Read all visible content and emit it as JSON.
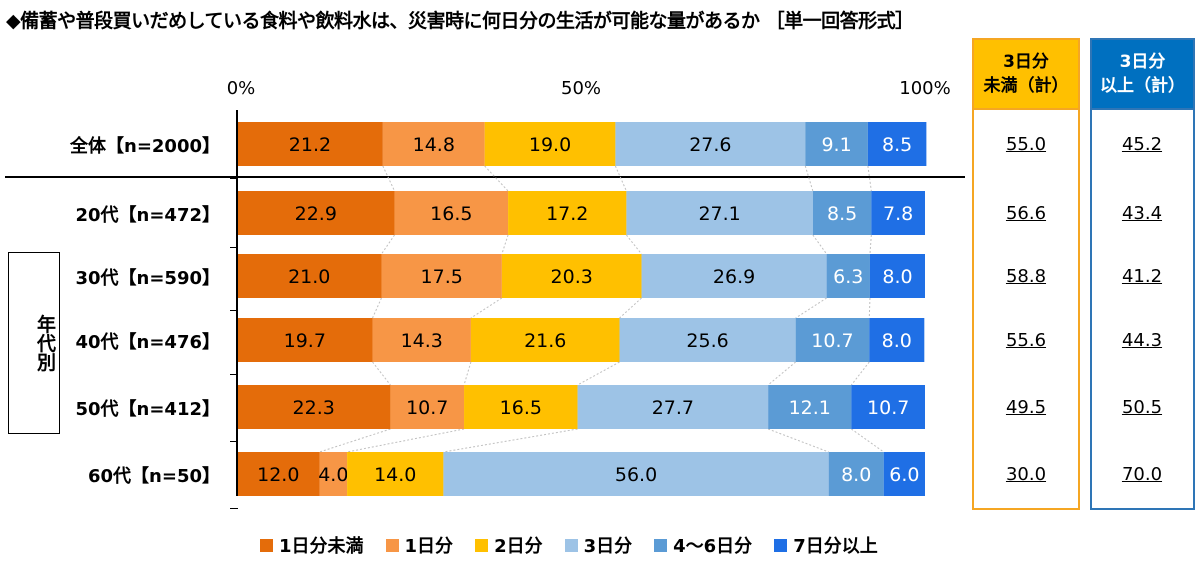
{
  "title": "◆備蓄や普段買いだめしている食料や飲料水は、災害時に何日分の生活が可能な量があるか ［単一回答形式］",
  "chart_data": {
    "type": "bar",
    "orientation": "horizontal",
    "stacked": true,
    "xlim": [
      0,
      100
    ],
    "tick_labels": [
      "0%",
      "50%",
      "100%"
    ],
    "categories": [
      "全体【n=2000】",
      "20代【n=472】",
      "30代【n=590】",
      "40代【n=476】",
      "50代【n=412】",
      "60代【n=50】"
    ],
    "group_label": "年代別",
    "series": [
      {
        "name": "1日分未満",
        "color": "#e46c0a",
        "values": [
          21.2,
          22.9,
          21.0,
          19.7,
          22.3,
          12.0
        ]
      },
      {
        "name": "1日分",
        "color": "#f79646",
        "values": [
          14.8,
          16.5,
          17.5,
          14.3,
          10.7,
          4.0
        ]
      },
      {
        "name": "2日分",
        "color": "#ffc000",
        "values": [
          19.0,
          17.2,
          20.3,
          21.6,
          16.5,
          14.0
        ]
      },
      {
        "name": "3日分",
        "color": "#9dc3e6",
        "values": [
          27.6,
          27.1,
          26.9,
          25.6,
          27.7,
          56.0
        ]
      },
      {
        "name": "4～6日分",
        "color": "#5b9bd5",
        "values": [
          9.1,
          8.5,
          6.3,
          10.7,
          12.1,
          8.0
        ]
      },
      {
        "name": "7日分以上",
        "color": "#1f6fe5",
        "values": [
          8.5,
          7.8,
          8.0,
          8.0,
          10.7,
          6.0
        ]
      }
    ],
    "summary": {
      "less_than_3": {
        "header_line1": "3日分",
        "header_line2": "未満（計）",
        "values": [
          "55.0",
          "56.6",
          "58.8",
          "55.6",
          "49.5",
          "30.0"
        ]
      },
      "three_or_more": {
        "header_line1": "3日分",
        "header_line2": "以上（計）",
        "values": [
          "45.2",
          "43.4",
          "41.2",
          "44.3",
          "50.5",
          "70.0"
        ]
      }
    },
    "legend_position": "bottom"
  }
}
